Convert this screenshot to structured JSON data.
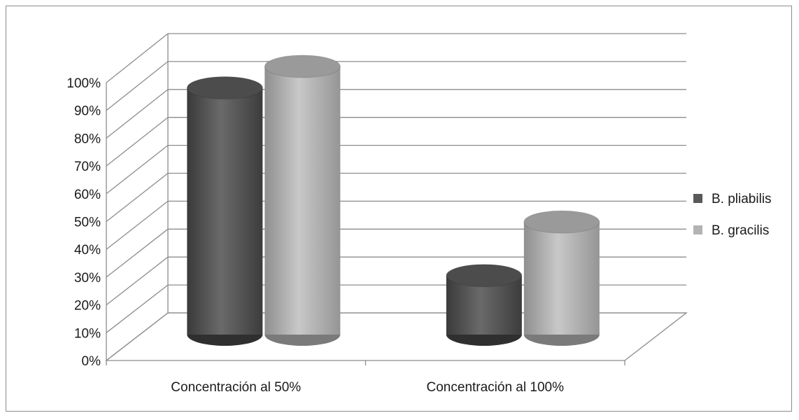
{
  "chart_data": {
    "type": "bar",
    "style": "3d-cylinder",
    "categories": [
      "Concentración al 50%",
      "Concentración al 100%"
    ],
    "series": [
      {
        "name": "B. pliabilis",
        "values": [
          92,
          22
        ],
        "color": "#595959"
      },
      {
        "name": "B. gracilis",
        "values": [
          100,
          42
        ],
        "color": "#b3b3b3"
      }
    ],
    "yticks": [
      "0%",
      "10%",
      "20%",
      "30%",
      "40%",
      "50%",
      "60%",
      "70%",
      "80%",
      "90%",
      "100%"
    ],
    "ylim": [
      0,
      100
    ],
    "grid": true,
    "legend": "right",
    "title": "",
    "xlabel": "",
    "ylabel": ""
  }
}
